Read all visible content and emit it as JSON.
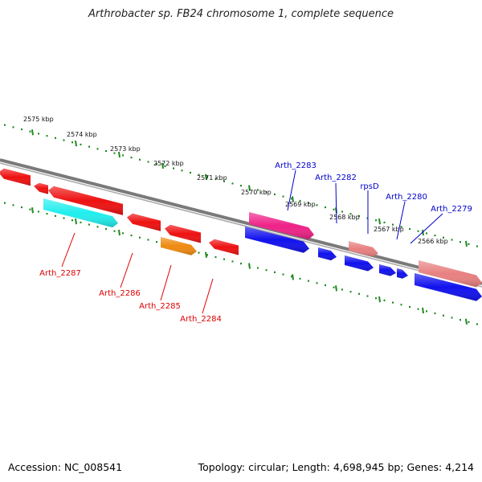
{
  "title": "Arthrobacter sp. FB24 chromosome 1, complete sequence",
  "footer": {
    "accession": "Accession: NC_008541",
    "stats": "Topology: circular; Length: 4,698,945 bp; Genes: 4,214"
  },
  "kbp_labels": [
    "2575 kbp",
    "2574 kbp",
    "2573 kbp",
    "2572 kbp",
    "2571 kbp",
    "2570 kbp",
    "2569 kbp",
    "2568 kbp",
    "2567 kbp",
    "2566 kbp"
  ],
  "colors": {
    "backbone": "#808080",
    "tick": "#1f8a1f",
    "label_top": "#0000cc",
    "label_bottom": "#dd0000",
    "red": "#ee1111",
    "cyan": "#22eeee",
    "orange": "#ee8a11",
    "magenta": "#ee2288",
    "pink": "#e88080",
    "blue": "#1111ee"
  },
  "gene_labels_top": [
    "Arth_2283",
    "Arth_2282",
    "rpsD",
    "Arth_2280",
    "Arth_2279"
  ],
  "gene_labels_bottom": [
    "Arth_2287",
    "Arth_2286",
    "Arth_2285",
    "Arth_2284"
  ]
}
